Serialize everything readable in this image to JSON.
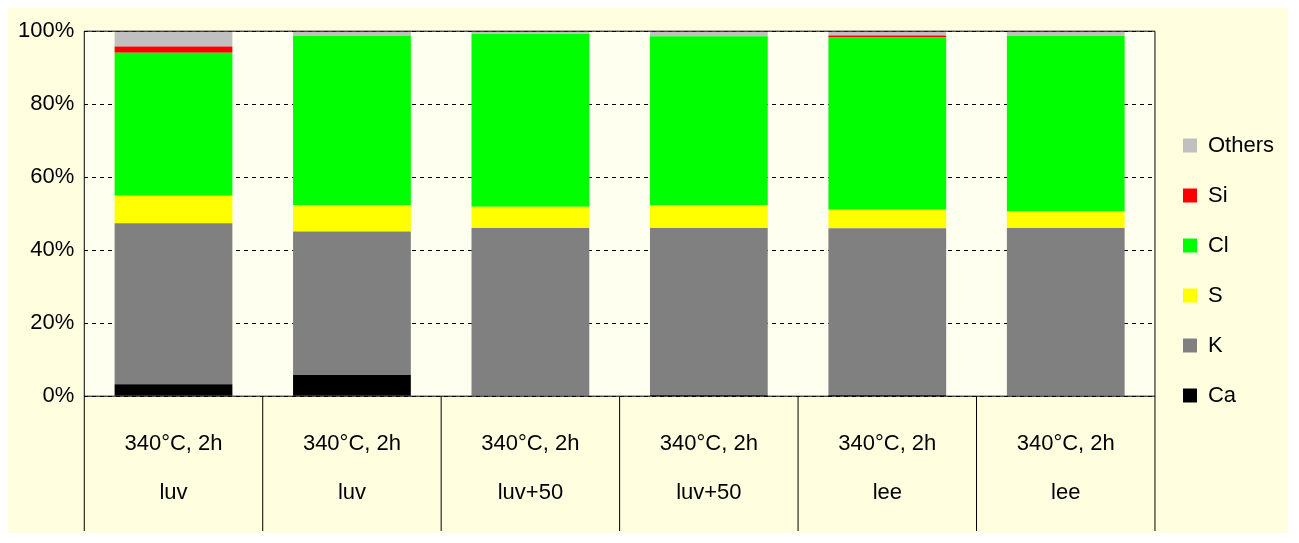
{
  "chart_data": {
    "type": "bar",
    "stacked": true,
    "categories": [
      "340°C, 2h\nluv",
      "340°C, 2h\nluv",
      "340°C, 2h\nluv+50",
      "340°C, 2h\nluv+50",
      "340°C, 2h\nlee",
      "340°C, 2h\nlee"
    ],
    "series": [
      {
        "name": "Ca",
        "color": "#000000",
        "values": [
          3.3,
          5.8,
          0,
          0.3,
          0.3,
          0
        ]
      },
      {
        "name": "K",
        "color": "#808080",
        "values": [
          44.1,
          39.3,
          46.1,
          45.8,
          45.7,
          46.1
        ]
      },
      {
        "name": "S",
        "color": "#ffff00",
        "values": [
          7.5,
          7.3,
          5.8,
          6.3,
          5.1,
          4.5
        ]
      },
      {
        "name": "Cl",
        "color": "#00ff00",
        "values": [
          39.2,
          46.3,
          47.4,
          46.2,
          47.2,
          48.1
        ]
      },
      {
        "name": "Si",
        "color": "#ff0000",
        "values": [
          1.7,
          0,
          0,
          0,
          0.5,
          0
        ]
      },
      {
        "name": "Others",
        "color": "#c0c0c0",
        "values": [
          4.2,
          1.3,
          0.7,
          1.4,
          1.2,
          1.3
        ]
      }
    ],
    "ylim": [
      0,
      100
    ],
    "yticks": [
      {
        "value": 0,
        "label": "0%"
      },
      {
        "value": 20,
        "label": "20%"
      },
      {
        "value": 40,
        "label": "40%"
      },
      {
        "value": 60,
        "label": "60%"
      },
      {
        "value": 80,
        "label": "80%"
      },
      {
        "value": 100,
        "label": "100%"
      }
    ],
    "grid": "y",
    "legend": "right"
  }
}
